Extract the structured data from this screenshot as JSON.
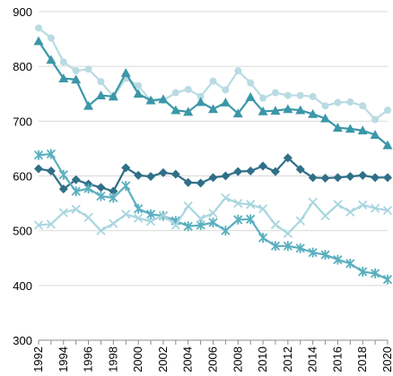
{
  "chart_data": {
    "type": "line",
    "title": "",
    "xlabel": "",
    "ylabel": "",
    "ylim": [
      300,
      900
    ],
    "xlim": [
      1992,
      2020
    ],
    "x": [
      1992,
      1993,
      1994,
      1995,
      1996,
      1997,
      1998,
      1999,
      2000,
      2001,
      2002,
      2003,
      2004,
      2005,
      2006,
      2007,
      2008,
      2009,
      2010,
      2011,
      2012,
      2013,
      2014,
      2015,
      2016,
      2017,
      2018,
      2019,
      2020
    ],
    "y_ticks": [
      300,
      400,
      500,
      600,
      700,
      800,
      900
    ],
    "x_ticks": [
      1992,
      1994,
      1996,
      1998,
      2000,
      2002,
      2004,
      2006,
      2008,
      2010,
      2012,
      2014,
      2016,
      2018,
      2020
    ],
    "grid": "horizontal",
    "series": [
      {
        "color": "#b9dbe3",
        "marker": "circle",
        "values": [
          870,
          852,
          808,
          792,
          795,
          772,
          745,
          778,
          765,
          737,
          738,
          752,
          758,
          745,
          773,
          757,
          792,
          770,
          742,
          752,
          747,
          747,
          745,
          728,
          734,
          735,
          728,
          703,
          720
        ]
      },
      {
        "color": "#3b97a8",
        "marker": "triangle",
        "values": [
          846,
          812,
          778,
          776,
          728,
          747,
          745,
          788,
          750,
          738,
          740,
          720,
          717,
          735,
          722,
          734,
          714,
          744,
          718,
          719,
          722,
          720,
          713,
          705,
          688,
          686,
          683,
          675,
          656
        ]
      },
      {
        "color": "#2f6f87",
        "marker": "diamond",
        "values": [
          613,
          609,
          576,
          593,
          585,
          579,
          572,
          615,
          601,
          599,
          606,
          603,
          588,
          587,
          597,
          600,
          608,
          609,
          618,
          608,
          633,
          612,
          597,
          596,
          597,
          599,
          601,
          597,
          597
        ]
      },
      {
        "color": "#5aafbf",
        "marker": "star",
        "values": [
          638,
          640,
          602,
          572,
          577,
          563,
          560,
          582,
          540,
          530,
          527,
          518,
          508,
          510,
          515,
          500,
          520,
          521,
          487,
          472,
          472,
          468,
          460,
          456,
          447,
          440,
          425,
          422,
          411
        ]
      },
      {
        "color": "#a9d6df",
        "marker": "x",
        "values": [
          510,
          512,
          533,
          539,
          524,
          500,
          513,
          530,
          523,
          517,
          528,
          510,
          545,
          522,
          532,
          560,
          550,
          548,
          540,
          511,
          495,
          518,
          552,
          527,
          548,
          534,
          547,
          541,
          537
        ]
      }
    ]
  }
}
